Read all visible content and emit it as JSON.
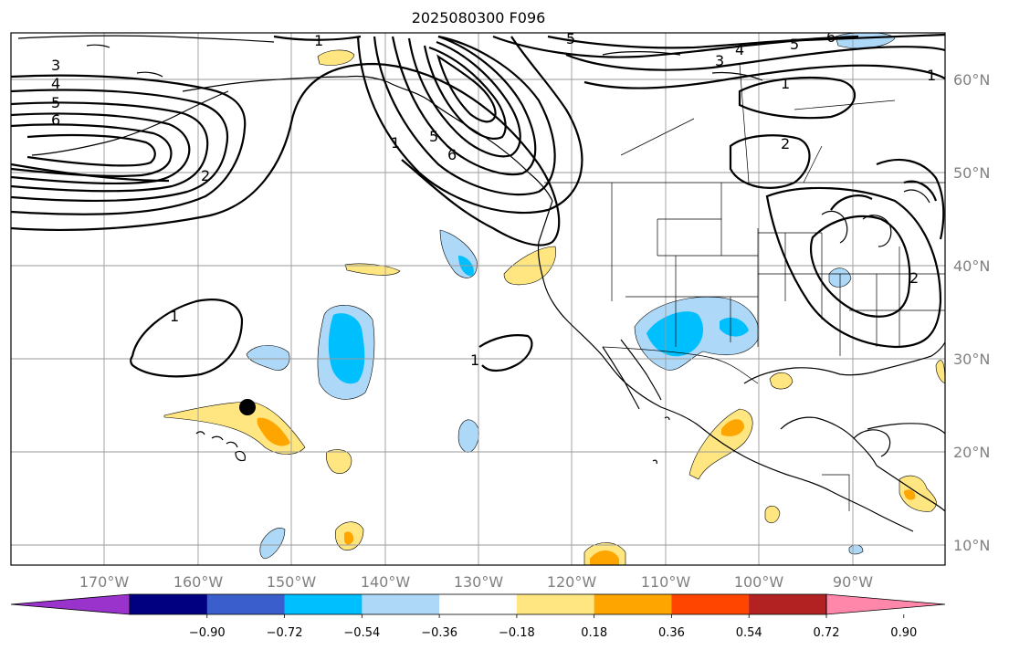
{
  "title": "2025080300 F096",
  "lat_labels": [
    "60°N",
    "50°N",
    "40°N",
    "30°N",
    "20°N",
    "10°N"
  ],
  "lon_labels": [
    "170°W",
    "160°W",
    "150°W",
    "140°W",
    "130°W",
    "120°W",
    "110°W",
    "100°W",
    "90°W"
  ],
  "colorbar": {
    "ticks": [
      "−0.90",
      "−0.72",
      "−0.54",
      "−0.36",
      "−0.18",
      "0.18",
      "0.36",
      "0.54",
      "0.72",
      "0.90"
    ],
    "colors": [
      "#9933cc",
      "#000080",
      "#3a5fcd",
      "#00bfff",
      "#add8f7",
      "#ffffff",
      "#ffe680",
      "#ffa500",
      "#ff4500",
      "#b22222",
      "#ff88aa"
    ]
  },
  "contour_labels": [
    "1",
    "2",
    "3",
    "4",
    "5",
    "6"
  ],
  "marker": "point"
}
